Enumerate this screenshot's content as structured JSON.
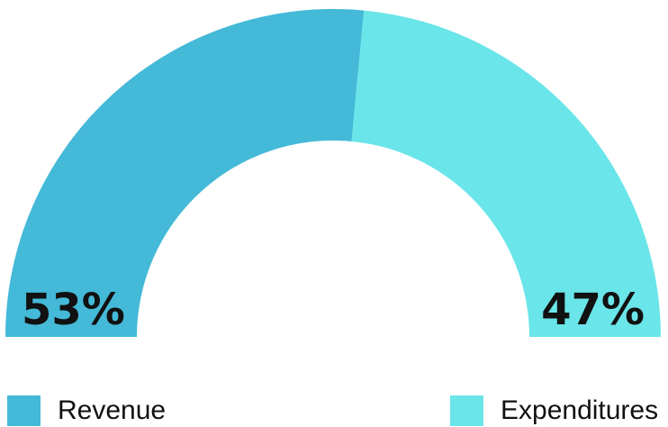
{
  "chart_data": {
    "type": "pie",
    "variant": "half-donut",
    "title": "",
    "series": [
      {
        "name": "Revenue",
        "value": 53,
        "label": "53%",
        "color": "#44b9d8"
      },
      {
        "name": "Expenditures",
        "value": 47,
        "label": "47%",
        "color": "#6ae5e9"
      }
    ],
    "legend_position": "bottom"
  }
}
